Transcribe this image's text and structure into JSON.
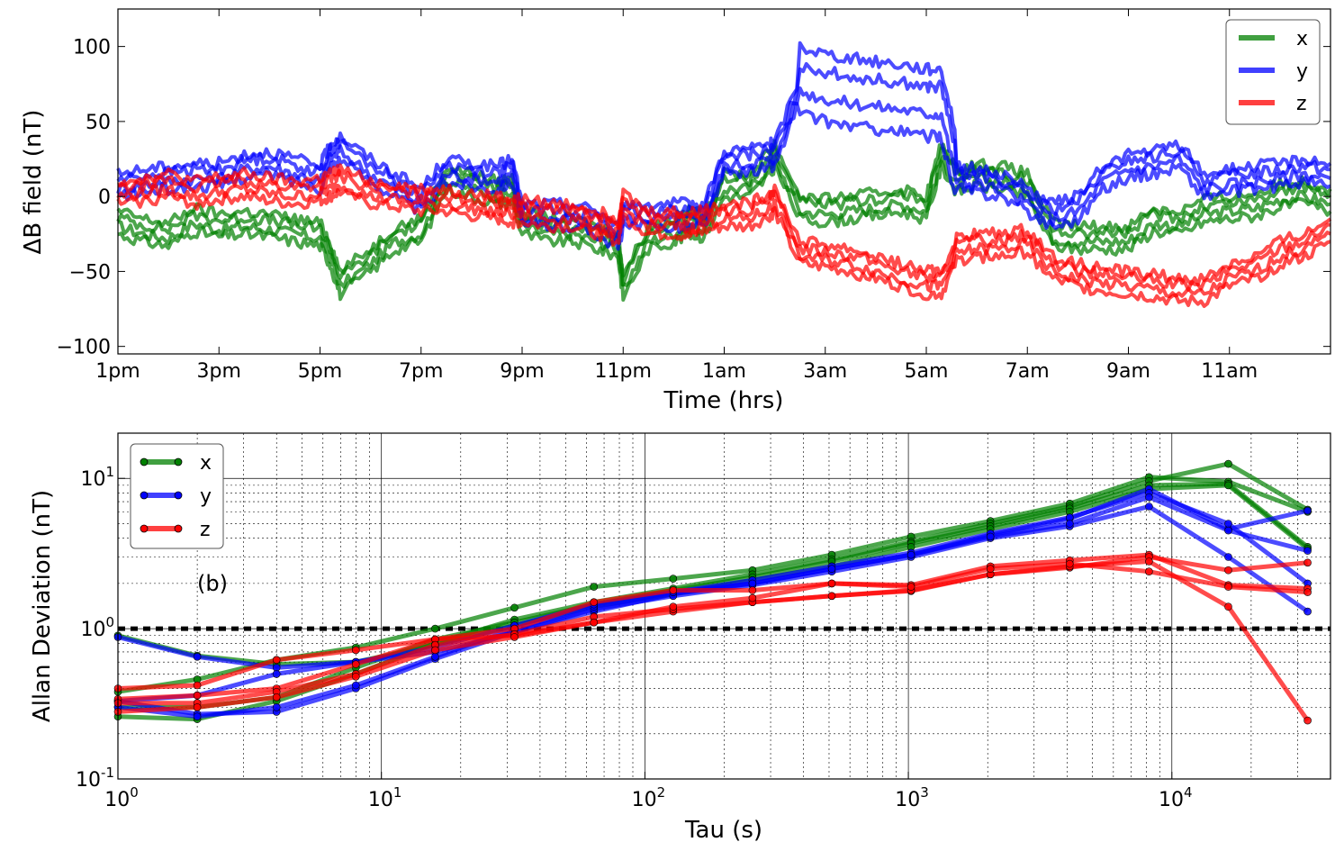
{
  "chart_data": [
    {
      "type": "line",
      "xlabel": "Time (hrs)",
      "ylabel": "ΔB field (nT)",
      "x_tick_labels": [
        "1pm",
        "3pm",
        "5pm",
        "7pm",
        "9pm",
        "11pm",
        "1am",
        "3am",
        "5am",
        "7am",
        "9am",
        "11am"
      ],
      "x_tick_hours": [
        0,
        2,
        4,
        6,
        8,
        10,
        12,
        14,
        16,
        18,
        20,
        22
      ],
      "xlim_hours": [
        0,
        24
      ],
      "ylim": [
        -105,
        125
      ],
      "y_ticks": [
        -100,
        -50,
        0,
        50,
        100
      ],
      "y_tick_labels": [
        "−100",
        "−50",
        "0",
        "50",
        "100"
      ],
      "legend": {
        "placement": "upper right",
        "entries": [
          "x",
          "y",
          "z"
        ]
      },
      "x_hours_sample": [
        0,
        0.5,
        1,
        1.5,
        2,
        2.5,
        3,
        3.5,
        4,
        4.2,
        4.4,
        5,
        5.5,
        6,
        6.5,
        7,
        7.5,
        7.8,
        8,
        8.5,
        9,
        9.5,
        9.9,
        10,
        10.5,
        11,
        11.3,
        11.6,
        12,
        12.5,
        12.9,
        13,
        13.5,
        14,
        14.5,
        15,
        15.5,
        16,
        16.3,
        16.6,
        17,
        17.5,
        18,
        18.5,
        19,
        19.5,
        20,
        20.5,
        21,
        21.5,
        22,
        22.5,
        23,
        23.5,
        24
      ],
      "series": [
        {
          "name": "x",
          "color": "#008000",
          "values": [
            -20,
            -25,
            -28,
            -18,
            -22,
            -20,
            -22,
            -25,
            -28,
            -40,
            -60,
            -45,
            -30,
            -25,
            10,
            5,
            0,
            2,
            -20,
            -25,
            -25,
            -30,
            -35,
            -62,
            -30,
            -25,
            -20,
            -22,
            5,
            5,
            20,
            25,
            -10,
            -12,
            -10,
            -8,
            -5,
            -10,
            25,
            8,
            12,
            10,
            5,
            -28,
            -30,
            -30,
            -30,
            -18,
            -20,
            -12,
            -10,
            -8,
            -2,
            0,
            -5
          ]
        },
        {
          "name": "y",
          "color": "#0000ff",
          "values": [
            5,
            8,
            10,
            12,
            12,
            18,
            20,
            15,
            10,
            25,
            30,
            15,
            5,
            -5,
            15,
            12,
            10,
            15,
            -15,
            -15,
            -15,
            -20,
            -30,
            -15,
            -15,
            -15,
            -15,
            -15,
            20,
            22,
            25,
            25,
            70,
            65,
            62,
            60,
            58,
            55,
            55,
            10,
            8,
            5,
            -5,
            -15,
            -10,
            10,
            18,
            20,
            25,
            5,
            8,
            10,
            12,
            15,
            12
          ]
        },
        {
          "name": "z",
          "color": "#ff0000",
          "values": [
            0,
            2,
            5,
            0,
            3,
            5,
            2,
            0,
            2,
            5,
            8,
            0,
            -2,
            -5,
            -5,
            -8,
            -10,
            -12,
            -12,
            -15,
            -15,
            -20,
            -25,
            -8,
            -20,
            -20,
            -22,
            -18,
            -15,
            -15,
            -8,
            -5,
            -40,
            -42,
            -45,
            -50,
            -55,
            -60,
            -60,
            -38,
            -35,
            -35,
            -32,
            -50,
            -55,
            -58,
            -60,
            -62,
            -65,
            -65,
            -55,
            -50,
            -40,
            -35,
            -25
          ]
        }
      ]
    },
    {
      "type": "line",
      "xscale": "log",
      "yscale": "log",
      "xlabel": "Tau (s)",
      "ylabel": "Allan Deviation (nT)",
      "xlim": [
        1,
        40000
      ],
      "ylim": [
        0.1,
        20
      ],
      "x_ticks": [
        1,
        10,
        100,
        1000,
        10000
      ],
      "x_tick_labels": [
        {
          "base": "10",
          "exp": "0"
        },
        {
          "base": "10",
          "exp": "1"
        },
        {
          "base": "10",
          "exp": "2"
        },
        {
          "base": "10",
          "exp": "3"
        },
        {
          "base": "10",
          "exp": "4"
        }
      ],
      "y_ticks": [
        0.1,
        1,
        10
      ],
      "y_tick_labels": [
        {
          "base": "10",
          "exp": "-1"
        },
        {
          "base": "10",
          "exp": "0"
        },
        {
          "base": "10",
          "exp": "1"
        }
      ],
      "grid": true,
      "annotation": "(b)",
      "reference_line": {
        "y": 1.0,
        "style": "dashed",
        "color": "#000000"
      },
      "legend": {
        "placement": "upper left",
        "entries": [
          "x",
          "y",
          "z"
        ]
      },
      "tau": [
        1,
        2,
        4,
        8,
        16,
        32,
        64,
        128,
        256,
        512,
        1024,
        2048,
        4096,
        8192,
        16384,
        32768
      ],
      "series": [
        {
          "name": "x",
          "color": "#008000",
          "values": [
            0.38,
            0.46,
            0.62,
            0.75,
            1.0,
            1.38,
            1.9,
            2.15,
            2.45,
            3.1,
            4.1,
            5.2,
            6.8,
            10.2,
            9.5,
            6.0
          ]
        },
        {
          "name": "x",
          "color": "#008000",
          "values": [
            0.26,
            0.25,
            0.33,
            0.5,
            0.8,
            1.15,
            1.5,
            1.85,
            2.3,
            2.9,
            3.8,
            5.0,
            6.5,
            9.6,
            12.5,
            6.2
          ]
        },
        {
          "name": "x",
          "color": "#008000",
          "values": [
            0.3,
            0.3,
            0.35,
            0.55,
            0.85,
            1.1,
            1.45,
            1.8,
            2.2,
            2.8,
            3.7,
            4.8,
            6.3,
            9.0,
            9.2,
            3.5
          ]
        },
        {
          "name": "x",
          "color": "#008000",
          "values": [
            0.9,
            0.66,
            0.58,
            0.6,
            0.78,
            1.05,
            1.4,
            1.7,
            2.1,
            2.6,
            3.5,
            4.6,
            6.0,
            8.5,
            9.0,
            3.4
          ]
        },
        {
          "name": "y",
          "color": "#0000ff",
          "values": [
            0.88,
            0.65,
            0.55,
            0.6,
            0.7,
            0.95,
            1.3,
            1.7,
            2.0,
            2.5,
            3.1,
            4.2,
            5.4,
            8.5,
            4.6,
            6.1
          ]
        },
        {
          "name": "y",
          "color": "#0000ff",
          "values": [
            0.33,
            0.27,
            0.28,
            0.4,
            0.63,
            0.95,
            1.35,
            1.65,
            1.95,
            2.4,
            3.0,
            4.0,
            4.8,
            6.5,
            3.0,
            1.3
          ]
        },
        {
          "name": "y",
          "color": "#0000ff",
          "values": [
            0.3,
            0.26,
            0.3,
            0.42,
            0.65,
            1.0,
            1.4,
            1.75,
            2.1,
            2.6,
            3.2,
            4.3,
            5.5,
            8.0,
            5.0,
            2.0
          ]
        },
        {
          "name": "y",
          "color": "#0000ff",
          "values": [
            0.33,
            0.36,
            0.5,
            0.6,
            0.75,
            1.05,
            1.45,
            1.75,
            2.0,
            2.5,
            3.1,
            4.1,
            5.0,
            7.5,
            4.5,
            3.3
          ]
        },
        {
          "name": "z",
          "color": "#ff0000",
          "values": [
            0.4,
            0.42,
            0.62,
            0.72,
            0.85,
            1.0,
            1.5,
            1.8,
            1.8,
            2.0,
            1.95,
            2.6,
            2.85,
            3.1,
            1.95,
            1.85
          ]
        },
        {
          "name": "z",
          "color": "#ff0000",
          "values": [
            0.34,
            0.36,
            0.4,
            0.58,
            0.85,
            0.9,
            1.1,
            1.3,
            1.5,
            1.65,
            1.78,
            2.3,
            2.55,
            3.0,
            2.45,
            2.75
          ]
        },
        {
          "name": "z",
          "color": "#ff0000",
          "values": [
            0.32,
            0.32,
            0.38,
            0.5,
            0.78,
            0.92,
            1.2,
            1.35,
            1.5,
            1.65,
            1.8,
            2.3,
            2.6,
            2.8,
            1.4,
            0.245
          ]
        },
        {
          "name": "z",
          "color": "#ff0000",
          "values": [
            0.28,
            0.3,
            0.35,
            0.48,
            0.72,
            0.88,
            1.1,
            1.4,
            1.6,
            2.0,
            1.9,
            2.5,
            2.7,
            2.4,
            1.9,
            1.75
          ]
        }
      ]
    }
  ]
}
